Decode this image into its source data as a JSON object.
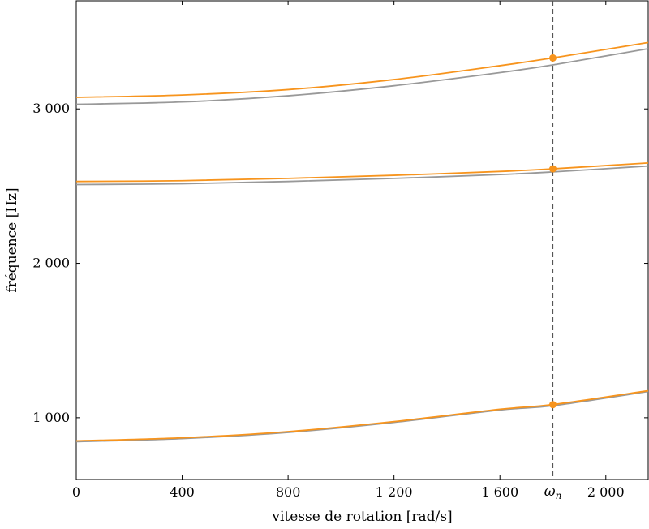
{
  "chart_data": {
    "type": "line",
    "title": "",
    "xlabel": "vitesse de rotation [rad/s]",
    "ylabel": "fréquence [Hz]",
    "xlim": [
      0,
      2160
    ],
    "ylim": [
      600,
      3700
    ],
    "xticks": [
      0,
      400,
      800,
      1200,
      1600,
      2000
    ],
    "xtick_labels": [
      "0",
      "400",
      "800",
      "1 200",
      "1 600",
      "2 000"
    ],
    "yticks": [
      1000,
      2000,
      3000
    ],
    "ytick_labels": [
      "1 000",
      "2 000",
      "3 000"
    ],
    "grid": false,
    "legend": "none",
    "marker": {
      "label": "ω",
      "subscript": "n",
      "x": 1800,
      "style": "dashed"
    },
    "series": [
      {
        "group": "gray",
        "color": "#999999",
        "x": [
          0,
          400,
          800,
          1200,
          1600,
          1800,
          2160
        ],
        "y": [
          845,
          865,
          905,
          970,
          1050,
          1078,
          1170
        ]
      },
      {
        "group": "gray",
        "color": "#999999",
        "x": [
          0,
          400,
          800,
          1200,
          1600,
          1800,
          2160
        ],
        "y": [
          2510,
          2515,
          2530,
          2550,
          2575,
          2592,
          2630
        ]
      },
      {
        "group": "gray",
        "color": "#999999",
        "x": [
          0,
          400,
          800,
          1200,
          1600,
          1800,
          2160
        ],
        "y": [
          3030,
          3045,
          3085,
          3150,
          3235,
          3285,
          3390
        ]
      },
      {
        "group": "orange",
        "color": "#F7941D",
        "x": [
          0,
          400,
          800,
          1200,
          1600,
          1800,
          2160
        ],
        "y": [
          850,
          870,
          910,
          975,
          1055,
          1085,
          1175
        ]
      },
      {
        "group": "orange",
        "color": "#F7941D",
        "x": [
          0,
          400,
          800,
          1200,
          1600,
          1800,
          2160
        ],
        "y": [
          2530,
          2535,
          2550,
          2570,
          2595,
          2612,
          2650
        ]
      },
      {
        "group": "orange",
        "color": "#F7941D",
        "x": [
          0,
          400,
          800,
          1200,
          1600,
          1800,
          2160
        ],
        "y": [
          3075,
          3090,
          3125,
          3190,
          3280,
          3330,
          3430
        ]
      }
    ],
    "points": [
      {
        "x": 1800,
        "y": 1085,
        "color": "#F7941D"
      },
      {
        "x": 1800,
        "y": 2612,
        "color": "#F7941D"
      },
      {
        "x": 1800,
        "y": 3330,
        "color": "#F7941D"
      }
    ]
  }
}
